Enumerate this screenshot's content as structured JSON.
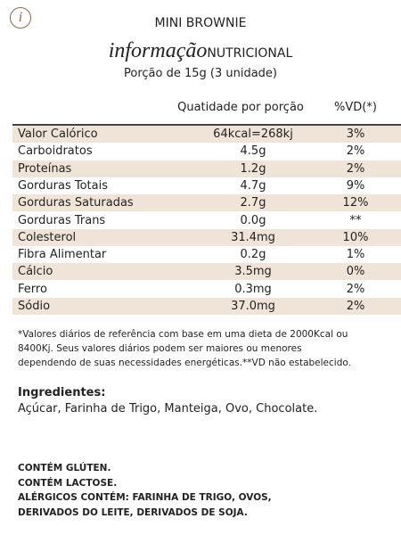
{
  "header": {
    "icon": "i",
    "title": "MINI BROWNIE",
    "subtitle_script": "informação",
    "subtitle": "NUTRICIONAL",
    "portion": "Porção de 15g (3 unidade)"
  },
  "table": {
    "columns": [
      "Quatidade por porção",
      "%VD(*)"
    ],
    "rows": [
      [
        "Valor Calórico",
        "64kcal=268kj",
        "3%"
      ],
      [
        "Carboidratos",
        "4.5g",
        "2%"
      ],
      [
        "Proteínas",
        "1.2g",
        "2%"
      ],
      [
        "Gorduras Totais",
        "4.7g",
        "9%"
      ],
      [
        "Gorduras Saturadas",
        "2.7g",
        "12%"
      ],
      [
        "Gorduras Trans",
        "0.0g",
        "**"
      ],
      [
        "Colesterol",
        "31.4mg",
        "10%"
      ],
      [
        "Fibra Alimentar",
        "0.2g",
        "1%"
      ],
      [
        "Cálcio",
        "3.5mg",
        "0%"
      ],
      [
        "Ferro",
        "0.3mg",
        "2%"
      ],
      [
        "Sódio",
        "37.0mg",
        "2%"
      ]
    ]
  },
  "footnote": [
    "*Valores diários de referência com base em uma dieta de 2000Kcal ou",
    "8400Kj. Seus valores diários podem ser maiores ou menores",
    "dependendo de suas necessidades energéticas.**VD não estabelecido."
  ],
  "ingredients": {
    "title": "Ingredientes:",
    "text": "Açúcar, Farinha de Trigo, Manteiga, Ovo, Chocolate."
  },
  "allergens": [
    "CONTÉM GLÚTEN.",
    "CONTÉM LACTOSE.",
    "ALÉRGICOS CONTÉM: FARINHA DE TRIGO, OVOS,",
    "DERIVADOS DO LEITE, DERIVADOS DE SOJA."
  ]
}
